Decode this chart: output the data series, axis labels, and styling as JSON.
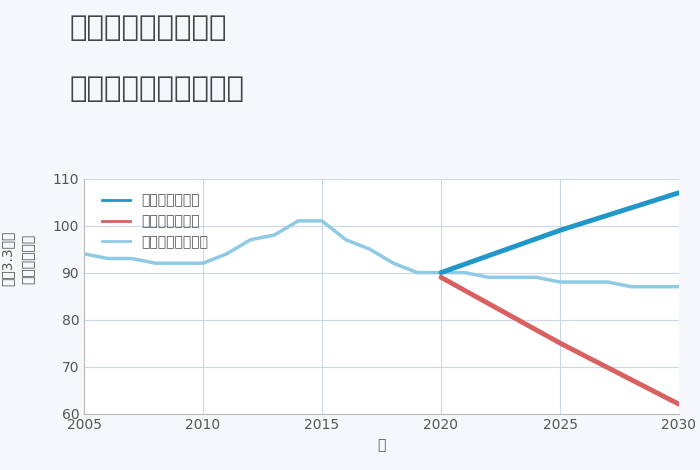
{
  "title_line1": "千葉県市原市千種の",
  "title_line2": "中古戸建ての価格推移",
  "xlabel": "年",
  "ylabel": "単価（万円）",
  "ylabel_prefix": "坪（3.3㎡）",
  "xlim": [
    2005,
    2030
  ],
  "ylim": [
    60,
    110
  ],
  "yticks": [
    60,
    70,
    80,
    90,
    100,
    110
  ],
  "xticks": [
    2005,
    2010,
    2015,
    2020,
    2025,
    2030
  ],
  "background_color": "#f5f7fa",
  "plot_background": "#ffffff",
  "grid_color": "#c8d8e8",
  "normal_scenario": {
    "years": [
      2005,
      2006,
      2007,
      2008,
      2009,
      2010,
      2011,
      2012,
      2013,
      2014,
      2015,
      2016,
      2017,
      2018,
      2019,
      2020,
      2021,
      2022,
      2023,
      2024,
      2025,
      2026,
      2027,
      2028,
      2029,
      2030
    ],
    "values": [
      94,
      93,
      93,
      92,
      92,
      92,
      94,
      97,
      98,
      101,
      101,
      97,
      95,
      92,
      90,
      90,
      90,
      89,
      89,
      89,
      88,
      88,
      88,
      87,
      87,
      87
    ],
    "color": "#8ecae6",
    "linewidth": 2.5,
    "label": "ノーマルシナリオ"
  },
  "good_scenario": {
    "years": [
      2020,
      2025,
      2030
    ],
    "values": [
      90,
      99,
      107
    ],
    "color": "#2196c8",
    "linewidth": 3.5,
    "label": "グッドシナリオ"
  },
  "bad_scenario": {
    "years": [
      2020,
      2025,
      2030
    ],
    "values": [
      89,
      75,
      62
    ],
    "color": "#d96060",
    "linewidth": 3.5,
    "label": "バッドシナリオ"
  },
  "title_color": "#444444",
  "title_fontsize": 21,
  "axis_label_fontsize": 10,
  "tick_fontsize": 10,
  "legend_fontsize": 10
}
